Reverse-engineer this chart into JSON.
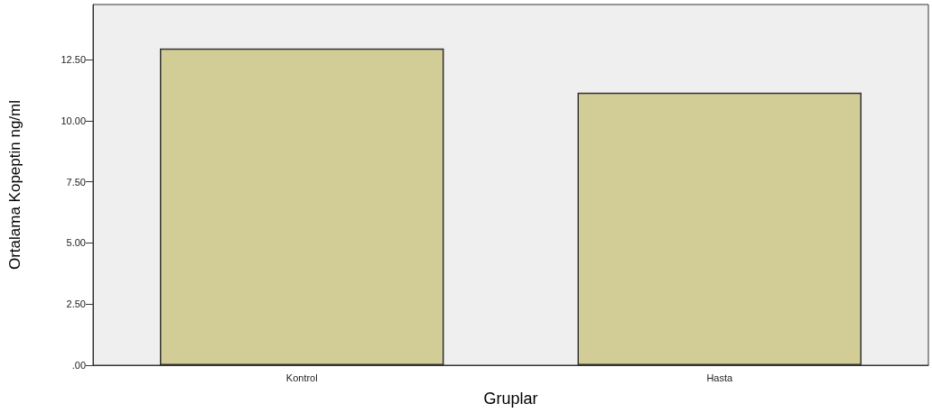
{
  "chart_data": {
    "type": "bar",
    "xlabel": "Gruplar",
    "ylabel": "Ortalama Kopeptin ng/ml",
    "categories": [
      "Kontrol",
      "Hasta"
    ],
    "values": [
      12.95,
      11.15
    ],
    "color": "#d2cd96",
    "ylim": [
      0,
      14.75
    ],
    "yticks": [
      {
        "value": 0,
        "label": ".00"
      },
      {
        "value": 2.5,
        "label": "2.50"
      },
      {
        "value": 5,
        "label": "5.00"
      },
      {
        "value": 7.5,
        "label": "7.50"
      },
      {
        "value": 10,
        "label": "10.00"
      },
      {
        "value": 12.5,
        "label": "12.50"
      }
    ],
    "grid": false
  }
}
